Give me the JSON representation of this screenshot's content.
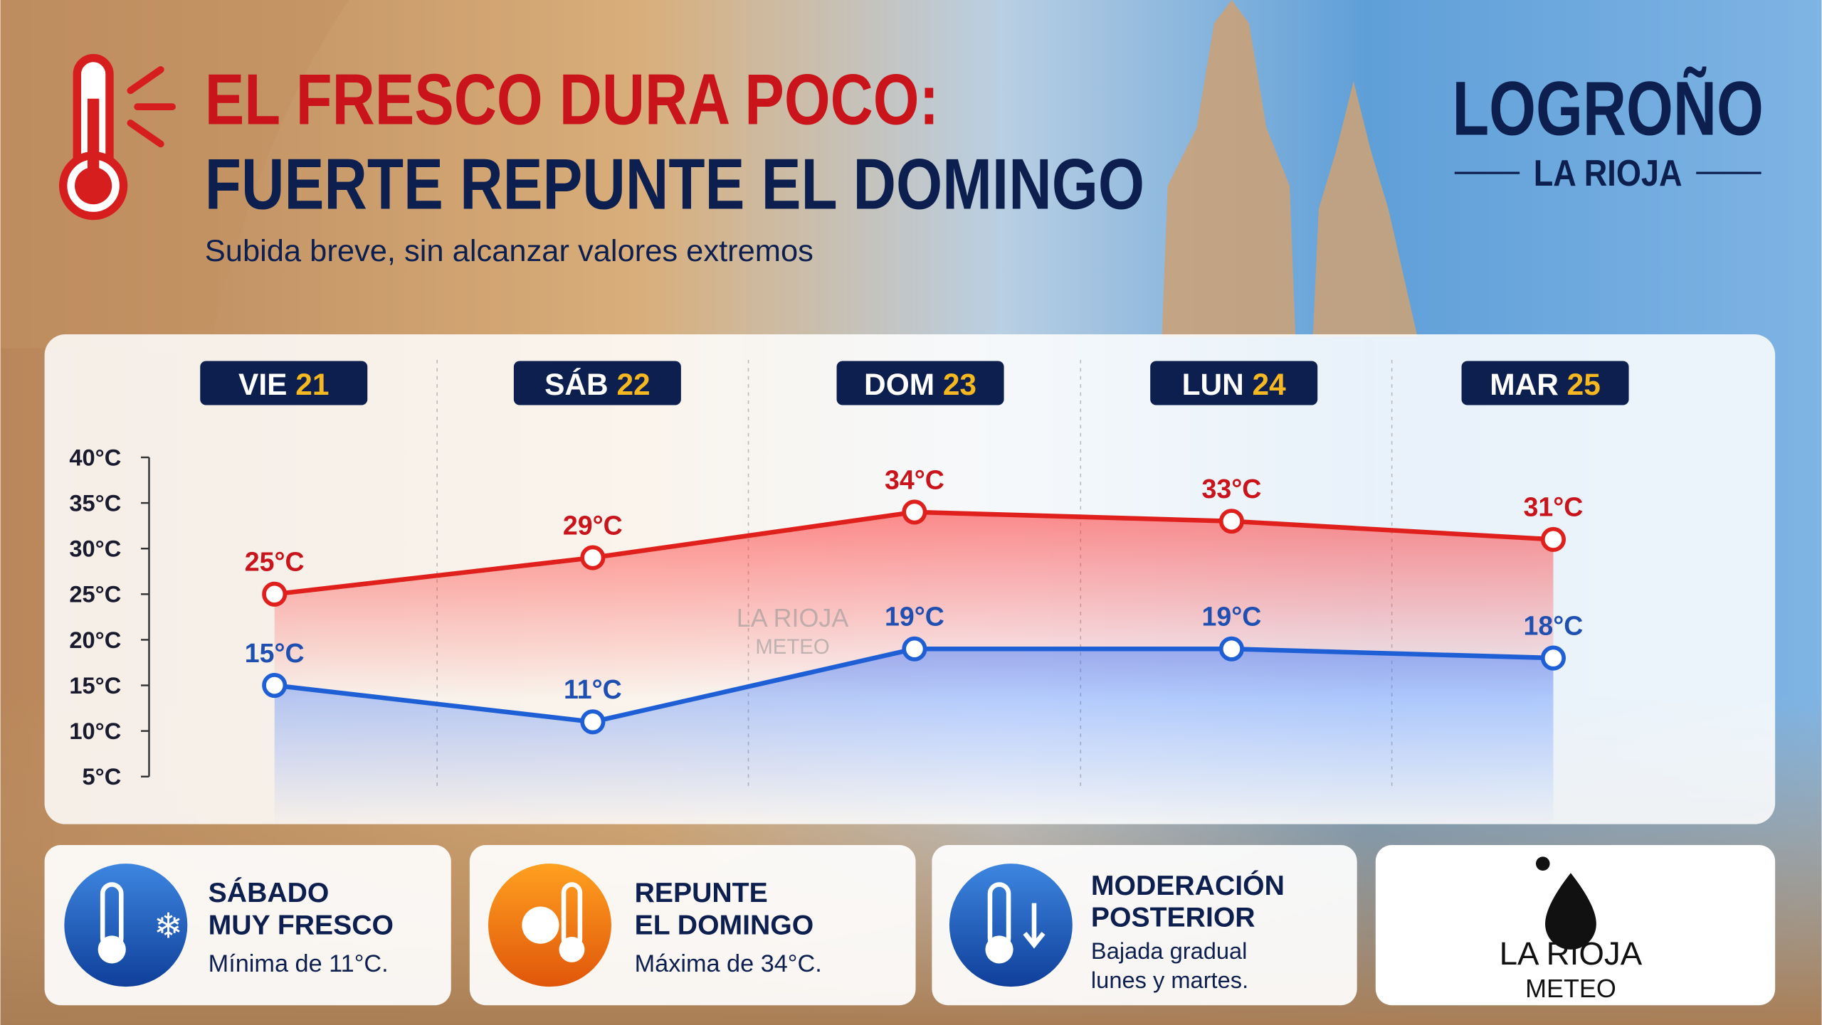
{
  "header": {
    "title_line1": "EL FRESCO DURA POCO:",
    "title_line2": "FUERTE REPUNTE EL DOMINGO",
    "subtitle": "Subida breve, sin alcanzar valores extremos",
    "city": "LOGROÑO",
    "region": "LA RIOJA"
  },
  "chart_data": {
    "type": "line",
    "categories": [
      "VIE",
      "SÁB",
      "DOM",
      "LUN",
      "MAR"
    ],
    "dates": [
      21,
      22,
      23,
      24,
      25
    ],
    "series": [
      {
        "color": "#e0201c",
        "values": [
          25,
          29,
          34,
          33,
          31
        ],
        "value_labels": [
          "25°C",
          "29°C",
          "34°C",
          "33°C",
          "31°C"
        ]
      },
      {
        "color": "#1f5fd6",
        "values": [
          15,
          11,
          19,
          19,
          18
        ],
        "value_labels": [
          "15°C",
          "11°C",
          "19°C",
          "19°C",
          "18°C"
        ]
      }
    ],
    "ylim": [
      5,
      40
    ],
    "yticks": [
      {
        "value": 5,
        "label": "5°C"
      },
      {
        "value": 10,
        "label": "10°C"
      },
      {
        "value": 15,
        "label": "15°C"
      },
      {
        "value": 20,
        "label": "20°C"
      },
      {
        "value": 25,
        "label": "25°C"
      },
      {
        "value": 30,
        "label": "30°C"
      },
      {
        "value": 35,
        "label": "35°C"
      },
      {
        "value": 40,
        "label": "40°C"
      }
    ]
  },
  "watermark": {
    "line1": "LA RIOJA",
    "line2": "METEO"
  },
  "cards": [
    {
      "title": [
        "SÁBADO",
        "MUY FRESCO"
      ],
      "text": [
        "Mínima de 11°C."
      ]
    },
    {
      "title": [
        "REPUNTE",
        "EL DOMINGO"
      ],
      "text": [
        "Máxima de 34°C."
      ]
    },
    {
      "title": [
        "MODERACIÓN",
        "POSTERIOR"
      ],
      "text": [
        "Bajada gradual",
        "lunes y martes."
      ]
    }
  ],
  "logo": {
    "line1": "LA RIOJA",
    "line2": "METEO"
  }
}
